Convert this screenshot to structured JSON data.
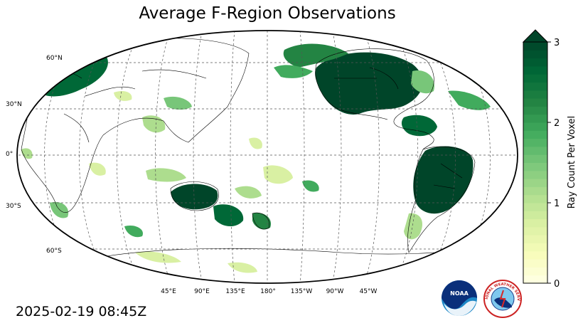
{
  "title": "Average F-Region Observations",
  "timestamp": "2025-02-19 08:45Z",
  "map": {
    "projection": "robinson",
    "central_longitude": "180°",
    "lat_labels": [
      "60°N",
      "30°N",
      "0°",
      "30°S",
      "60°S"
    ],
    "lon_labels": [
      "45°E",
      "90°E",
      "135°E",
      "180°",
      "135°W",
      "90°W",
      "45°W"
    ]
  },
  "colorbar": {
    "label": "Ray Count Per Voxel",
    "ticks": [
      "0",
      "1",
      "2",
      "3"
    ],
    "min": 0,
    "max": 3,
    "extend": "max",
    "colormap": "YlGn",
    "colors": [
      "#ffffe5",
      "#f7fcb9",
      "#d9f0a3",
      "#addd8e",
      "#78c679",
      "#41ab5d",
      "#238443",
      "#006837",
      "#004529"
    ]
  },
  "logos": {
    "noaa": "NOAA",
    "nws": "NATIONAL WEATHER SERVICE"
  }
}
